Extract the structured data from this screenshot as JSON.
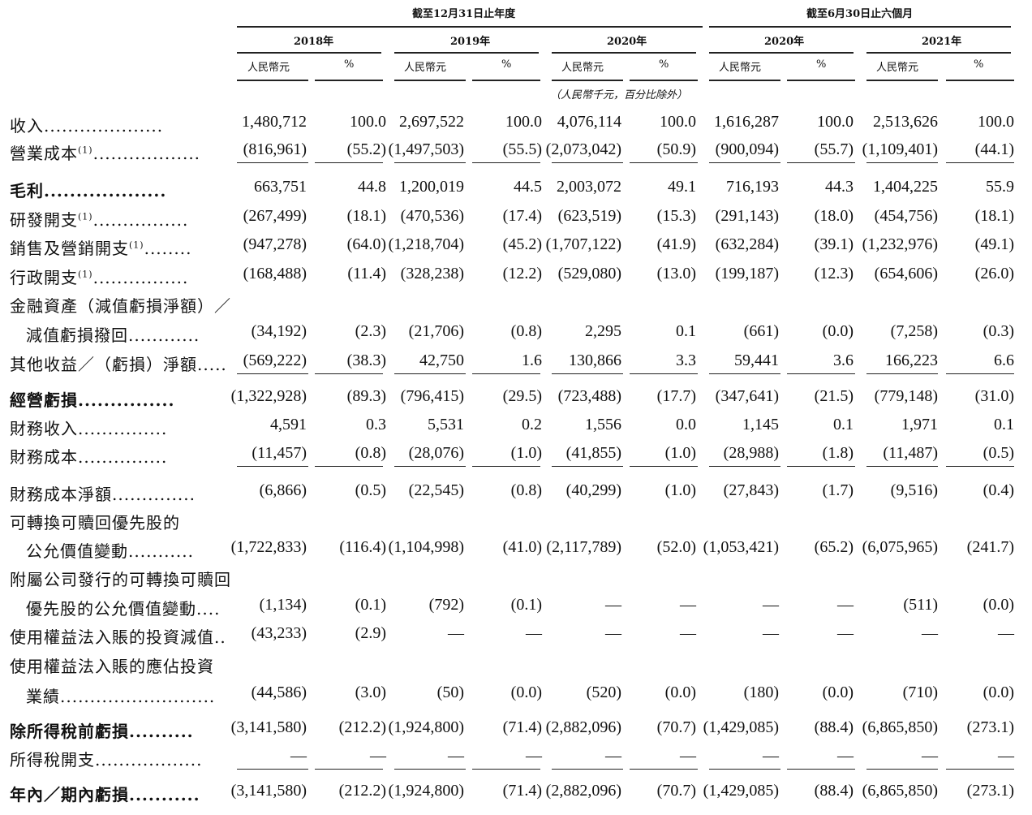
{
  "header": {
    "group1": "截至12月31日止年度",
    "group2": "截至6月30日止六個月",
    "years": [
      "2018年",
      "2019年",
      "2020年",
      "2020年",
      "2021年"
    ],
    "col_rmb": "人民幣元",
    "col_pct": "%",
    "unit_note": "（人民幣千元，百分比除外）"
  },
  "rows": [
    {
      "label": "收入",
      "dots": "....................",
      "bold": false,
      "values": [
        "1,480,712",
        "100.0",
        "2,697,522",
        "100.0",
        "4,076,114",
        "100.0",
        "1,616,287",
        "100.0",
        "2,513,626",
        "100.0"
      ]
    },
    {
      "label": "營業成本",
      "sup": "(1)",
      "dots": "..................",
      "bold": false,
      "values": [
        "(816,961)",
        "(55.2)",
        "(1,497,503)",
        "(55.5)",
        "(2,073,042)",
        "(50.9)",
        "(900,094)",
        "(55.7)",
        "(1,109,401)",
        "(44.1)"
      ]
    },
    {
      "label": "毛利",
      "dots": "...................",
      "bold": true,
      "values": [
        "663,751",
        "44.8",
        "1,200,019",
        "44.5",
        "2,003,072",
        "49.1",
        "716,193",
        "44.3",
        "1,404,225",
        "55.9"
      ]
    },
    {
      "label": "研發開支",
      "sup": "(1)",
      "dots": "................",
      "bold": false,
      "values": [
        "(267,499)",
        "(18.1)",
        "(470,536)",
        "(17.4)",
        "(623,519)",
        "(15.3)",
        "(291,143)",
        "(18.0)",
        "(454,756)",
        "(18.1)"
      ]
    },
    {
      "label": "銷售及營銷開支",
      "sup": "(1)",
      "dots": "........",
      "bold": false,
      "values": [
        "(947,278)",
        "(64.0)",
        "(1,218,704)",
        "(45.2)",
        "(1,707,122)",
        "(41.9)",
        "(632,284)",
        "(39.1)",
        "(1,232,976)",
        "(49.1)"
      ]
    },
    {
      "label": "行政開支",
      "sup": "(1)",
      "dots": "................",
      "bold": false,
      "values": [
        "(168,488)",
        "(11.4)",
        "(328,238)",
        "(12.2)",
        "(529,080)",
        "(13.0)",
        "(199,187)",
        "(12.3)",
        "(654,606)",
        "(26.0)"
      ]
    },
    {
      "label": "金融資產（減值虧損淨額）／",
      "bold": false,
      "values": []
    },
    {
      "label": "減值虧損撥回",
      "dots": "............",
      "bold": false,
      "indent": true,
      "values": [
        "(34,192)",
        "(2.3)",
        "(21,706)",
        "(0.8)",
        "2,295",
        "0.1",
        "(661)",
        "(0.0)",
        "(7,258)",
        "(0.3)"
      ]
    },
    {
      "label": "其他收益／（虧損）淨額",
      "dots": ".....",
      "bold": false,
      "values": [
        "(569,222)",
        "(38.3)",
        "42,750",
        "1.6",
        "130,866",
        "3.3",
        "59,441",
        "3.6",
        "166,223",
        "6.6"
      ]
    },
    {
      "label": "經營虧損",
      "dots": "...............",
      "bold": true,
      "values": [
        "(1,322,928)",
        "(89.3)",
        "(796,415)",
        "(29.5)",
        "(723,488)",
        "(17.7)",
        "(347,641)",
        "(21.5)",
        "(779,148)",
        "(31.0)"
      ]
    },
    {
      "label": "財務收入",
      "dots": "...............",
      "bold": false,
      "values": [
        "4,591",
        "0.3",
        "5,531",
        "0.2",
        "1,556",
        "0.0",
        "1,145",
        "0.1",
        "1,971",
        "0.1"
      ]
    },
    {
      "label": "財務成本",
      "dots": "...............",
      "bold": false,
      "values": [
        "(11,457)",
        "(0.8)",
        "(28,076)",
        "(1.0)",
        "(41,855)",
        "(1.0)",
        "(28,988)",
        "(1.8)",
        "(11,487)",
        "(0.5)"
      ]
    },
    {
      "label": "財務成本淨額",
      "dots": "..............",
      "bold": false,
      "values": [
        "(6,866)",
        "(0.5)",
        "(22,545)",
        "(0.8)",
        "(40,299)",
        "(1.0)",
        "(27,843)",
        "(1.7)",
        "(9,516)",
        "(0.4)"
      ]
    },
    {
      "label": "可轉換可贖回優先股的",
      "bold": false,
      "values": []
    },
    {
      "label": "公允價值變動",
      "dots": "...........",
      "bold": false,
      "indent": true,
      "values": [
        "(1,722,833)",
        "(116.4)",
        "(1,104,998)",
        "(41.0)",
        "(2,117,789)",
        "(52.0)",
        "(1,053,421)",
        "(65.2)",
        "(6,075,965)",
        "(241.7)"
      ]
    },
    {
      "label": "附屬公司發行的可轉換可贖回",
      "bold": false,
      "values": []
    },
    {
      "label": "優先股的公允價值變動",
      "dots": "....",
      "bold": false,
      "indent": true,
      "values": [
        "(1,134)",
        "(0.1)",
        "(792)",
        "(0.1)",
        "—",
        "—",
        "—",
        "—",
        "(511)",
        "(0.0)"
      ]
    },
    {
      "label": "使用權益法入賬的投資減值",
      "dots": "..",
      "bold": false,
      "values": [
        "(43,233)",
        "(2.9)",
        "—",
        "—",
        "—",
        "—",
        "—",
        "—",
        "—",
        "—"
      ]
    },
    {
      "label": "使用權益法入賬的應佔投資",
      "bold": false,
      "values": []
    },
    {
      "label": "業績",
      "dots": "..........................",
      "bold": false,
      "indent": true,
      "values": [
        "(44,586)",
        "(3.0)",
        "(50)",
        "(0.0)",
        "(520)",
        "(0.0)",
        "(180)",
        "(0.0)",
        "(710)",
        "(0.0)"
      ]
    },
    {
      "label": "除所得稅前虧損",
      "dots": "..........",
      "bold": true,
      "values": [
        "(3,141,580)",
        "(212.2)",
        "(1,924,800)",
        "(71.4)",
        "(2,882,096)",
        "(70.7)",
        "(1,429,085)",
        "(88.4)",
        "(6,865,850)",
        "(273.1)"
      ]
    },
    {
      "label": "所得稅開支",
      "dots": "..................",
      "bold": false,
      "values": [
        "—",
        "—",
        "—",
        "—",
        "—",
        "—",
        "—",
        "—",
        "—",
        "—"
      ]
    },
    {
      "label": "年內／期內虧損",
      "dots": "...........",
      "bold": true,
      "values": [
        "(3,141,580)",
        "(212.2)",
        "(1,924,800)",
        "(71.4)",
        "(2,882,096)",
        "(70.7)",
        "(1,429,085)",
        "(88.4)",
        "(6,865,850)",
        "(273.1)"
      ]
    }
  ]
}
